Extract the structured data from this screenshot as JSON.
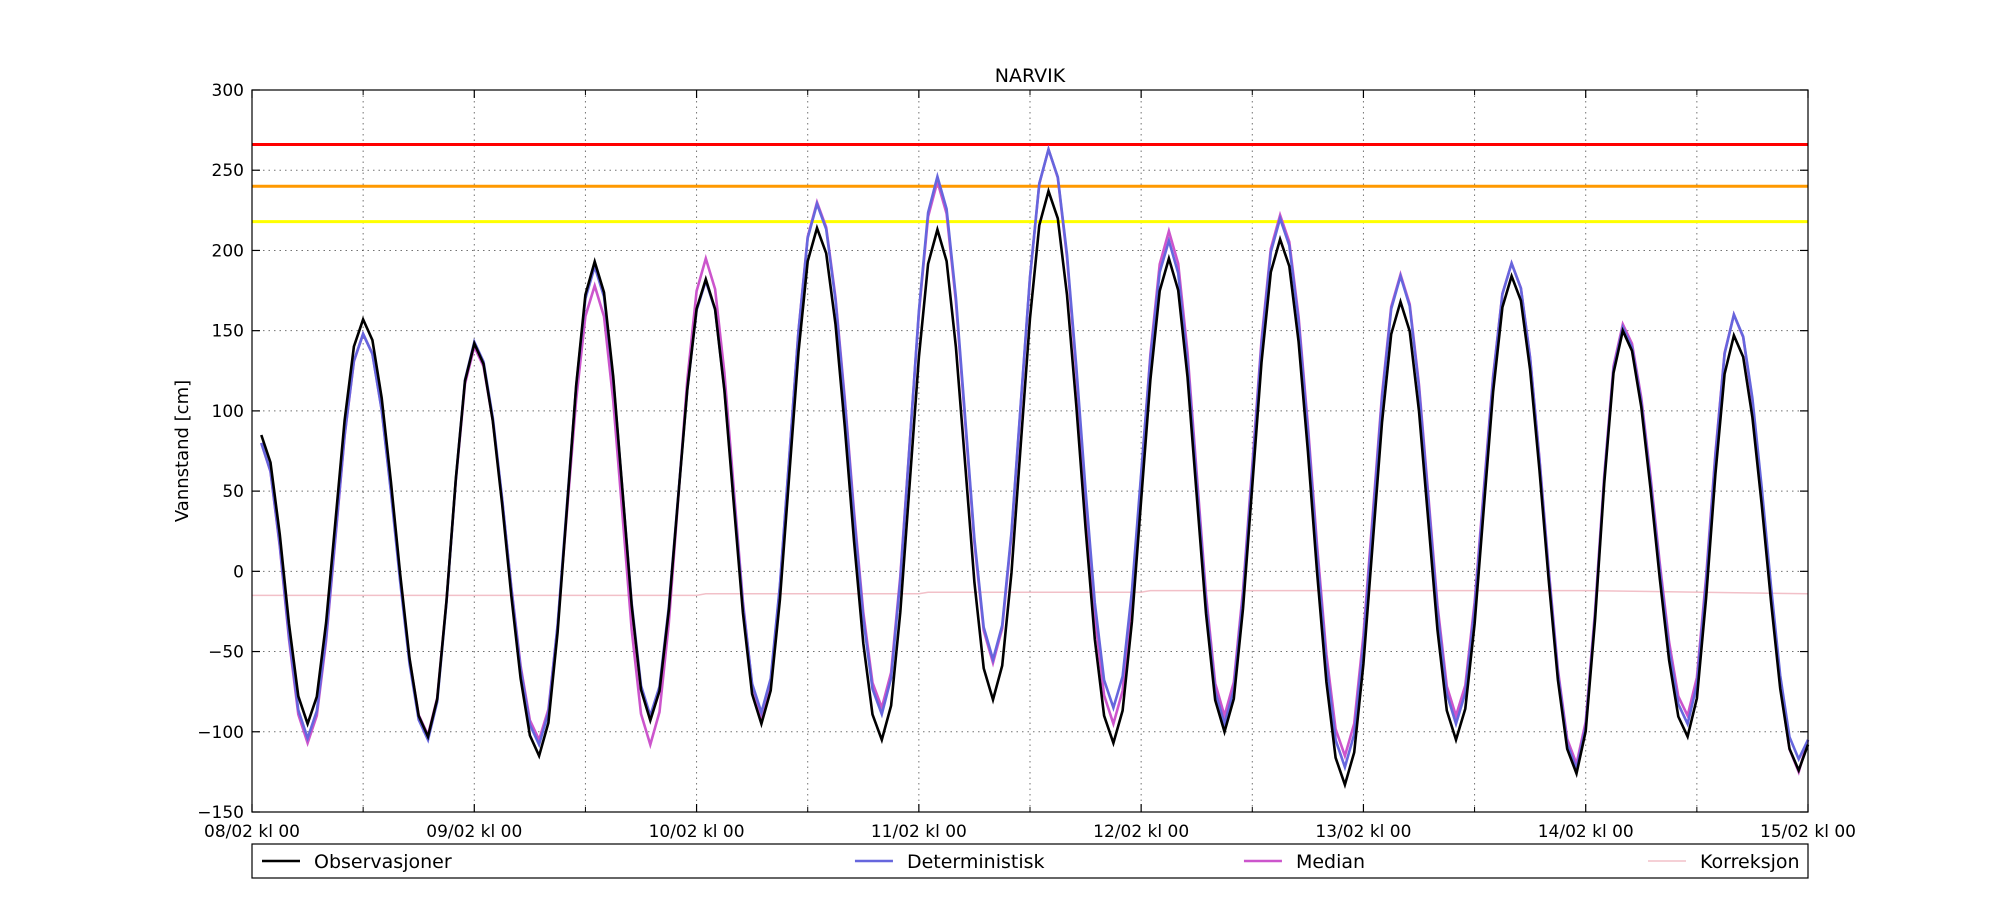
{
  "chart_data": {
    "type": "line",
    "title": "NARVIK",
    "xlabel": "",
    "ylabel": "Vannstand [cm]",
    "ylim": [
      -150,
      300
    ],
    "xlim": [
      0,
      168
    ],
    "x_unit": "hours since 08/02 kl 00",
    "x_major_ticks": [
      {
        "x": 0,
        "label": "08/02 kl 00"
      },
      {
        "x": 24,
        "label": "09/02 kl 00"
      },
      {
        "x": 48,
        "label": "10/02 kl 00"
      },
      {
        "x": 72,
        "label": "11/02 kl 00"
      },
      {
        "x": 96,
        "label": "12/02 kl 00"
      },
      {
        "x": 120,
        "label": "13/02 kl 00"
      },
      {
        "x": 144,
        "label": "14/02 kl 00"
      },
      {
        "x": 168,
        "label": "15/02 kl 00"
      }
    ],
    "x_minor_ticks": [
      12,
      36,
      60,
      84,
      108,
      132,
      156
    ],
    "y_ticks": [
      -150,
      -100,
      -50,
      0,
      50,
      100,
      150,
      200,
      250,
      300
    ],
    "grid": true,
    "legend_position": "bottom",
    "thresholds": [
      {
        "value": 266,
        "color": "#ff0000"
      },
      {
        "value": 240,
        "color": "#ff9900"
      },
      {
        "value": 218,
        "color": "#ffff00"
      }
    ],
    "series": [
      {
        "name": "Observasjoner",
        "color": "#000000",
        "extrema": [
          [
            1,
            85
          ],
          [
            6,
            -95
          ],
          [
            12,
            157
          ],
          [
            19,
            -103
          ],
          [
            24,
            142
          ],
          [
            31,
            -115
          ],
          [
            37,
            193
          ],
          [
            43,
            -93
          ],
          [
            49,
            182
          ],
          [
            55,
            -95
          ],
          [
            61,
            214
          ],
          [
            68,
            -105
          ],
          [
            74,
            213
          ],
          [
            80,
            -80
          ],
          [
            86,
            237
          ],
          [
            93,
            -107
          ],
          [
            99,
            195
          ],
          [
            105,
            -100
          ],
          [
            111,
            207
          ],
          [
            118,
            -133
          ],
          [
            124,
            168
          ],
          [
            130,
            -105
          ],
          [
            136,
            184
          ],
          [
            143,
            -126
          ],
          [
            148,
            150
          ],
          [
            155,
            -103
          ],
          [
            160,
            147
          ],
          [
            167,
            -124
          ],
          [
            168,
            -108
          ]
        ]
      },
      {
        "name": "Deterministisk",
        "color": "#6666dd",
        "extrema": [
          [
            1,
            80
          ],
          [
            6,
            -104
          ],
          [
            12,
            148
          ],
          [
            19,
            -105
          ],
          [
            24,
            143
          ],
          [
            31,
            -108
          ],
          [
            37,
            190
          ],
          [
            43,
            -90
          ],
          [
            49,
            181
          ],
          [
            55,
            -88
          ],
          [
            61,
            229
          ],
          [
            68,
            -89
          ],
          [
            74,
            246
          ],
          [
            80,
            -55
          ],
          [
            86,
            263
          ],
          [
            93,
            -85
          ],
          [
            99,
            206
          ],
          [
            105,
            -95
          ],
          [
            111,
            220
          ],
          [
            118,
            -122
          ],
          [
            124,
            184
          ],
          [
            130,
            -95
          ],
          [
            136,
            192
          ],
          [
            143,
            -123
          ],
          [
            148,
            152
          ],
          [
            155,
            -95
          ],
          [
            160,
            160
          ],
          [
            167,
            -117
          ],
          [
            168,
            -105
          ]
        ]
      },
      {
        "name": "Median",
        "color": "#cc55cc",
        "extrema": [
          [
            1,
            80
          ],
          [
            6,
            -107
          ],
          [
            12,
            148
          ],
          [
            19,
            -102
          ],
          [
            24,
            140
          ],
          [
            31,
            -105
          ],
          [
            37,
            178
          ],
          [
            43,
            -108
          ],
          [
            49,
            195
          ],
          [
            55,
            -90
          ],
          [
            61,
            230
          ],
          [
            68,
            -85
          ],
          [
            74,
            243
          ],
          [
            80,
            -57
          ],
          [
            86,
            263
          ],
          [
            93,
            -95
          ],
          [
            99,
            212
          ],
          [
            105,
            -90
          ],
          [
            111,
            222
          ],
          [
            118,
            -115
          ],
          [
            124,
            185
          ],
          [
            130,
            -90
          ],
          [
            136,
            192
          ],
          [
            143,
            -120
          ],
          [
            148,
            154
          ],
          [
            155,
            -90
          ],
          [
            160,
            160
          ],
          [
            167,
            -125
          ],
          [
            168,
            -105
          ]
        ]
      },
      {
        "name": "Korreksjon",
        "color": "#f2c0c8",
        "points": [
          [
            0,
            -15
          ],
          [
            48,
            -15
          ],
          [
            49,
            -14
          ],
          [
            72,
            -14
          ],
          [
            73,
            -13
          ],
          [
            96,
            -13
          ],
          [
            97,
            -12
          ],
          [
            144,
            -12
          ],
          [
            168,
            -14
          ]
        ]
      }
    ]
  }
}
